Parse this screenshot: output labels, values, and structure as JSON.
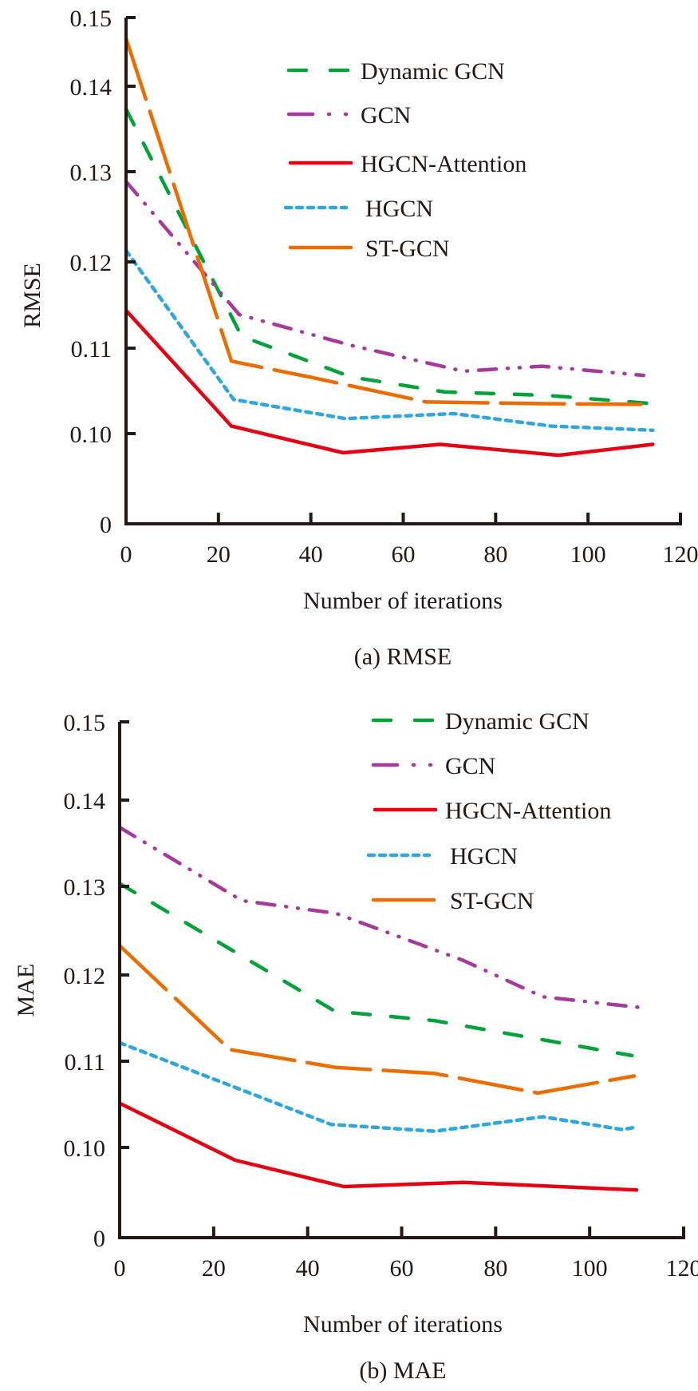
{
  "chart_data": [
    {
      "type": "line",
      "caption": "(a) RMSE",
      "xlabel": "Number of iterations",
      "ylabel": "RMSE",
      "xlim": [
        0,
        120
      ],
      "ylim": [
        0,
        0.15
      ],
      "y_axis_break": "between 0 and 0.10",
      "x_ticks": [
        "0",
        "20",
        "40",
        "60",
        "80",
        "100",
        "120"
      ],
      "y_ticks": [
        "0",
        "0.10",
        "0.11",
        "0.12",
        "0.13",
        "0.14",
        "0.15"
      ],
      "legend_position": "top-right",
      "series": [
        {
          "name": "Dynamic GCN",
          "color": "#00a23a",
          "style": "dashed",
          "x": [
            0,
            25,
            48.7,
            69,
            91,
            114
          ],
          "y": [
            0.139,
            0.1117,
            0.1068,
            0.105,
            0.1046,
            0.1036
          ]
        },
        {
          "name": "GCN",
          "color": "#a6399b",
          "style": "dash-dot-dot",
          "x": [
            0,
            24.5,
            48.7,
            73,
            90,
            112
          ],
          "y": [
            0.1303,
            0.1143,
            0.1106,
            0.1075,
            0.1081,
            0.107
          ]
        },
        {
          "name": "HGCN-Attention",
          "color": "#e60012",
          "style": "solid",
          "x": [
            0,
            22.8,
            47,
            68,
            93.6,
            114
          ],
          "y": [
            0.1148,
            0.1009,
            0.0977,
            0.0987,
            0.0974,
            0.0987
          ]
        },
        {
          "name": "HGCN",
          "color": "#2ea7e0",
          "style": "dotted",
          "x": [
            0,
            23.3,
            47.5,
            71,
            92,
            114
          ],
          "y": [
            0.122,
            0.1041,
            0.1018,
            0.1024,
            0.1009,
            0.1004
          ]
        },
        {
          "name": "ST-GCN",
          "color": "#ec6c00",
          "style": "long-dash",
          "x": [
            0,
            22.8,
            39.7,
            65,
            90,
            114
          ],
          "y": [
            0.1475,
            0.1087,
            0.1068,
            0.1038,
            0.1036,
            0.1035
          ]
        }
      ]
    },
    {
      "type": "line",
      "caption": "(b) MAE",
      "xlabel": "Number of iterations",
      "ylabel": "MAE",
      "xlim": [
        0,
        120
      ],
      "ylim": [
        0,
        0.15
      ],
      "y_axis_break": "between 0 and 0.10",
      "x_ticks": [
        "0",
        "20",
        "40",
        "60",
        "80",
        "100",
        "120"
      ],
      "y_ticks": [
        "0",
        "0.10",
        "0.11",
        "0.12",
        "0.13",
        "0.14",
        "0.15"
      ],
      "legend_position": "top-right",
      "series": [
        {
          "name": "Dynamic GCN",
          "color": "#00a23a",
          "style": "dashed",
          "x": [
            0,
            45.8,
            67,
            109
          ],
          "y": [
            0.131,
            0.116,
            0.1149,
            0.1108
          ]
        },
        {
          "name": "GCN",
          "color": "#a6399b",
          "style": "dash-dot-dot",
          "x": [
            0,
            26,
            46,
            73,
            90,
            111.5
          ],
          "y": [
            0.1376,
            0.129,
            0.1275,
            0.122,
            0.1177,
            0.1164
          ]
        },
        {
          "name": "HGCN-Attention",
          "color": "#e60012",
          "style": "solid",
          "x": [
            0,
            24.6,
            47.7,
            73,
            110
          ],
          "y": [
            0.1052,
            0.0985,
            0.0954,
            0.0959,
            0.095
          ]
        },
        {
          "name": "HGCN",
          "color": "#2ea7e0",
          "style": "dotted",
          "x": [
            0,
            45,
            67,
            90,
            107,
            110
          ],
          "y": [
            0.1123,
            0.1027,
            0.1019,
            0.1036,
            0.1021,
            0.1024
          ]
        },
        {
          "name": "ST-GCN",
          "color": "#ec6c00",
          "style": "long-dash",
          "x": [
            0,
            23.4,
            46,
            67,
            89,
            109.5
          ],
          "y": [
            0.1237,
            0.1115,
            0.1094,
            0.1087,
            0.1064,
            0.1084
          ]
        }
      ]
    }
  ]
}
